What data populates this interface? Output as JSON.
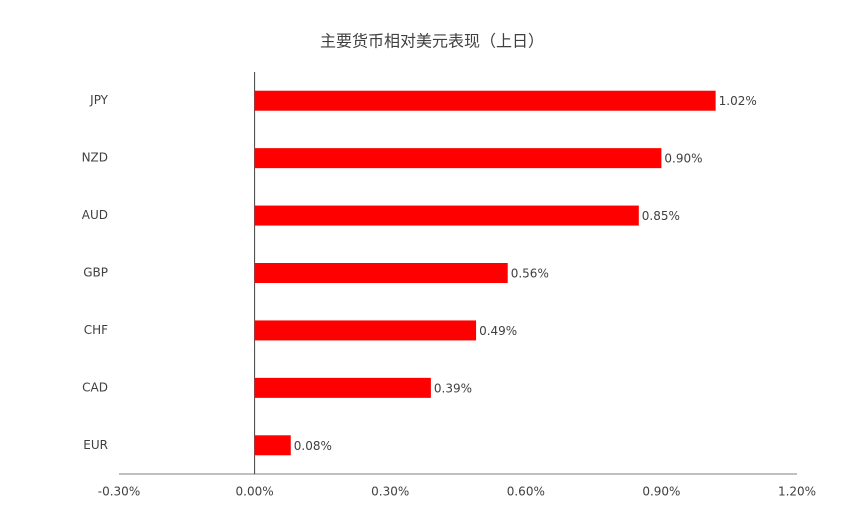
{
  "chart_data": {
    "type": "bar",
    "orientation": "horizontal",
    "title": "主要货币相对美元表现（上日）",
    "categories": [
      "JPY",
      "NZD",
      "AUD",
      "GBP",
      "CHF",
      "CAD",
      "EUR"
    ],
    "values": [
      1.02,
      0.9,
      0.85,
      0.56,
      0.49,
      0.39,
      0.08
    ],
    "value_labels": [
      "1.02%",
      "0.90%",
      "0.85%",
      "0.56%",
      "0.49%",
      "0.39%",
      "0.08%"
    ],
    "color": "#ff0000",
    "xlim": [
      -0.3,
      1.2
    ],
    "xticks": [
      {
        "value": -0.3,
        "label": "-0.30%"
      },
      {
        "value": 0,
        "label": "0.00%"
      },
      {
        "value": 0.3,
        "label": "0.30%"
      },
      {
        "value": 0.6,
        "label": "0.60%"
      },
      {
        "value": 0.9,
        "label": "0.90%"
      },
      {
        "value": 1.2,
        "label": "1.20%"
      }
    ],
    "grid": false
  }
}
